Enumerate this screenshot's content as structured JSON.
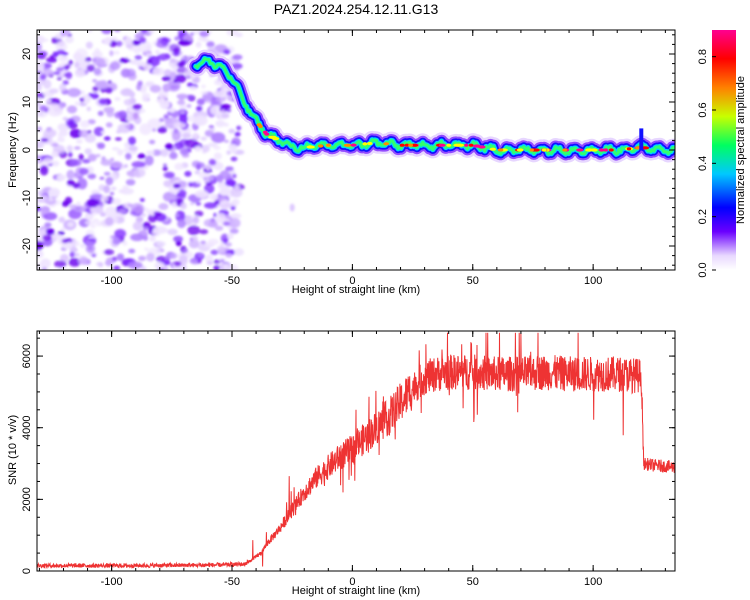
{
  "title": "PAZ1.2024.254.12.11.G13",
  "chart_data": [
    {
      "type": "heatmap",
      "title": "PAZ1.2024.254.12.11.G13",
      "xlabel": "Height of straight line (km)",
      "ylabel": "Frequency (Hz)",
      "xlim": [
        -131,
        134
      ],
      "ylim": [
        -25,
        25
      ],
      "x_ticks": [
        "-100",
        "-50",
        "0",
        "50",
        "100"
      ],
      "y_ticks": [
        "-20",
        "-10",
        "0",
        "10",
        "20"
      ],
      "colorbar": {
        "label": "Normalized spectral amplitude",
        "ticks": [
          "0.0",
          "0.2",
          "0.4",
          "0.6",
          "0.8"
        ],
        "range": [
          0,
          0.9
        ],
        "colors": [
          "#ffffff",
          "#6a00ff",
          "#0000ff",
          "#00c8ff",
          "#00ff60",
          "#c8ff00",
          "#ff8000",
          "#ff0000",
          "#ff0090"
        ]
      },
      "ridge": {
        "x": [
          -65,
          -60,
          -55,
          -50,
          -45,
          -40,
          -35,
          -30,
          -25,
          -20,
          -10,
          0,
          10,
          20,
          30,
          40,
          50,
          60,
          70,
          80,
          90,
          100,
          110,
          120,
          134
        ],
        "y": [
          18,
          18.5,
          17.5,
          15,
          10,
          6,
          3,
          2,
          0.5,
          0.5,
          1,
          1,
          1.5,
          1,
          1,
          1,
          1,
          0,
          0,
          0,
          0,
          0,
          0,
          0.5,
          0
        ]
      },
      "noise_region_x": [
        -131,
        -47
      ]
    },
    {
      "type": "line",
      "xlabel": "Height of straight line (km)",
      "ylabel": "SNR (10 * v/v)",
      "xlim": [
        -131,
        134
      ],
      "ylim": [
        0,
        6700
      ],
      "x_ticks": [
        "-100",
        "-50",
        "0",
        "50",
        "100"
      ],
      "y_ticks": [
        "0",
        "2000",
        "4000",
        "6000"
      ],
      "color": "#ee3333",
      "series": [
        {
          "x": [
            -131,
            -110,
            -90,
            -70,
            -55,
            -45,
            -42,
            -38,
            -35,
            -30,
            -25,
            -20,
            -15,
            -10,
            -5,
            0,
            5,
            10,
            15,
            20,
            25,
            30,
            35,
            40,
            50,
            60,
            70,
            80,
            90,
            100,
            110,
            120,
            121,
            125,
            134
          ],
          "values": [
            150,
            150,
            150,
            160,
            170,
            190,
            300,
            500,
            800,
            1200,
            1700,
            2200,
            2600,
            2900,
            3200,
            3400,
            3700,
            4000,
            4300,
            4700,
            5100,
            5400,
            5500,
            5550,
            5550,
            5500,
            5500,
            5550,
            5500,
            5500,
            5500,
            5450,
            3000,
            2950,
            2900
          ]
        }
      ]
    }
  ]
}
